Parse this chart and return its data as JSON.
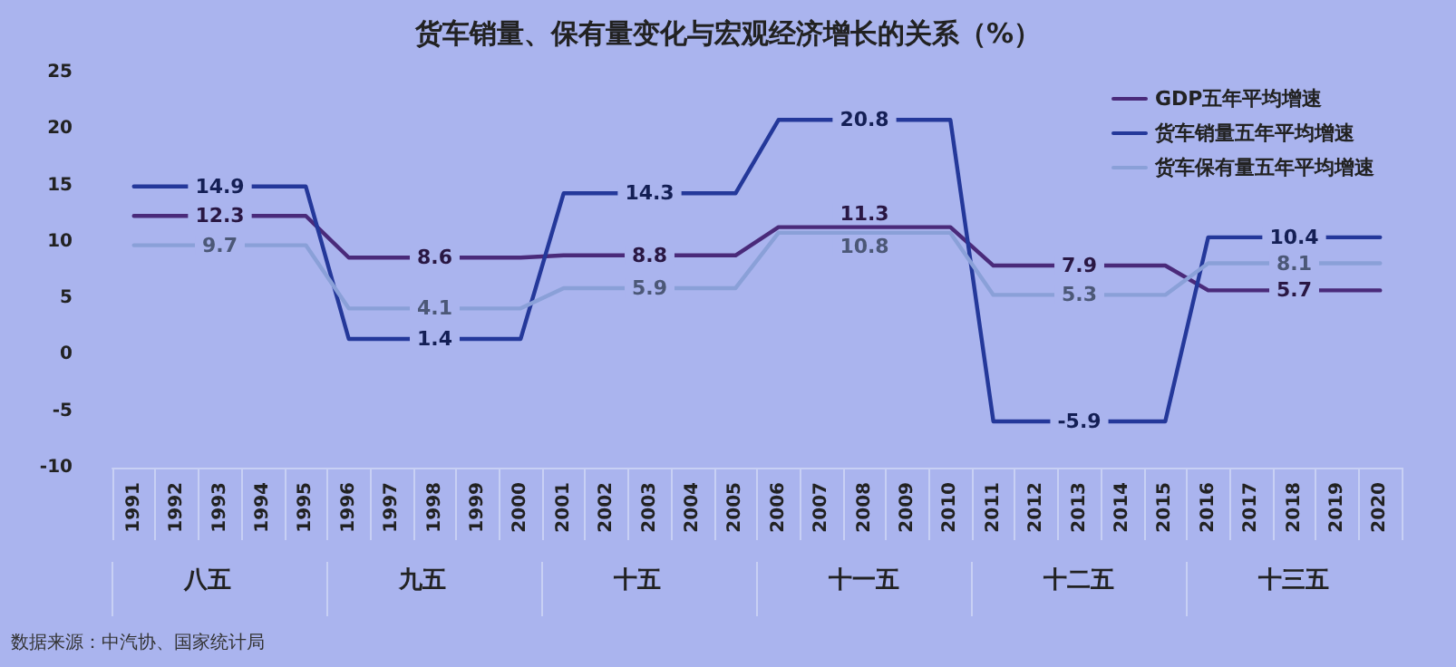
{
  "chart_data": {
    "type": "line",
    "title": "货车销量、保有量变化与宏观经济增长的关系（%）",
    "categories": [
      "1991",
      "1992",
      "1993",
      "1994",
      "1995",
      "1996",
      "1997",
      "1998",
      "1999",
      "2000",
      "2001",
      "2002",
      "2003",
      "2004",
      "2005",
      "2006",
      "2007",
      "2008",
      "2009",
      "2010",
      "2011",
      "2012",
      "2013",
      "2014",
      "2015",
      "2016",
      "2017",
      "2018",
      "2019",
      "2020"
    ],
    "series": [
      {
        "name": "GDP五年平均增速",
        "color": "#4a2a7a",
        "values": [
          12.3,
          12.3,
          12.3,
          12.3,
          12.3,
          8.6,
          8.6,
          8.6,
          8.6,
          8.6,
          8.8,
          8.8,
          8.8,
          8.8,
          8.8,
          11.3,
          11.3,
          11.3,
          11.3,
          11.3,
          7.9,
          7.9,
          7.9,
          7.9,
          7.9,
          5.7,
          5.7,
          5.7,
          5.7,
          5.7
        ],
        "value_labels": [
          null,
          null,
          "12.3",
          null,
          null,
          null,
          null,
          "8.6",
          null,
          null,
          null,
          null,
          "8.8",
          null,
          null,
          null,
          null,
          "11.3",
          null,
          null,
          null,
          null,
          "7.9",
          null,
          null,
          null,
          null,
          "5.7",
          null,
          null
        ]
      },
      {
        "name": "货车销量五年平均增速",
        "color": "#24389a",
        "values": [
          14.9,
          14.9,
          14.9,
          14.9,
          14.9,
          1.4,
          1.4,
          1.4,
          1.4,
          1.4,
          14.3,
          14.3,
          14.3,
          14.3,
          14.3,
          20.8,
          20.8,
          20.8,
          20.8,
          20.8,
          -5.9,
          -5.9,
          -5.9,
          -5.9,
          -5.9,
          10.4,
          10.4,
          10.4,
          10.4,
          10.4
        ],
        "value_labels": [
          null,
          null,
          "14.9",
          null,
          null,
          null,
          null,
          "1.4",
          null,
          null,
          null,
          null,
          "14.3",
          null,
          null,
          null,
          null,
          "20.8",
          null,
          null,
          null,
          null,
          "-5.9",
          null,
          null,
          null,
          null,
          "10.4",
          null,
          null
        ]
      },
      {
        "name": "货车保有量五年平均增速",
        "color": "#8aa0d8",
        "values": [
          9.7,
          9.7,
          9.7,
          9.7,
          9.7,
          4.1,
          4.1,
          4.1,
          4.1,
          4.1,
          5.9,
          5.9,
          5.9,
          5.9,
          5.9,
          10.8,
          10.8,
          10.8,
          10.8,
          10.8,
          5.3,
          5.3,
          5.3,
          5.3,
          5.3,
          8.1,
          8.1,
          8.1,
          8.1,
          8.1
        ],
        "value_labels": [
          null,
          null,
          "9.7",
          null,
          null,
          null,
          null,
          "4.1",
          null,
          null,
          null,
          null,
          "5.9",
          null,
          null,
          null,
          null,
          "10.8",
          null,
          null,
          null,
          null,
          "5.3",
          null,
          null,
          null,
          null,
          "8.1",
          null,
          null
        ]
      }
    ],
    "ylim": [
      -10,
      25
    ],
    "yticks": [
      -10,
      -5,
      0,
      5,
      10,
      15,
      20,
      25
    ],
    "grid": false,
    "legend": "top right",
    "marker": "none",
    "line_style": "solid",
    "annotations": [
      "八五",
      "九五",
      "十五",
      "十一五",
      "十二五",
      "十三五",
      "数据来源：中汽协、国家统计局"
    ]
  }
}
